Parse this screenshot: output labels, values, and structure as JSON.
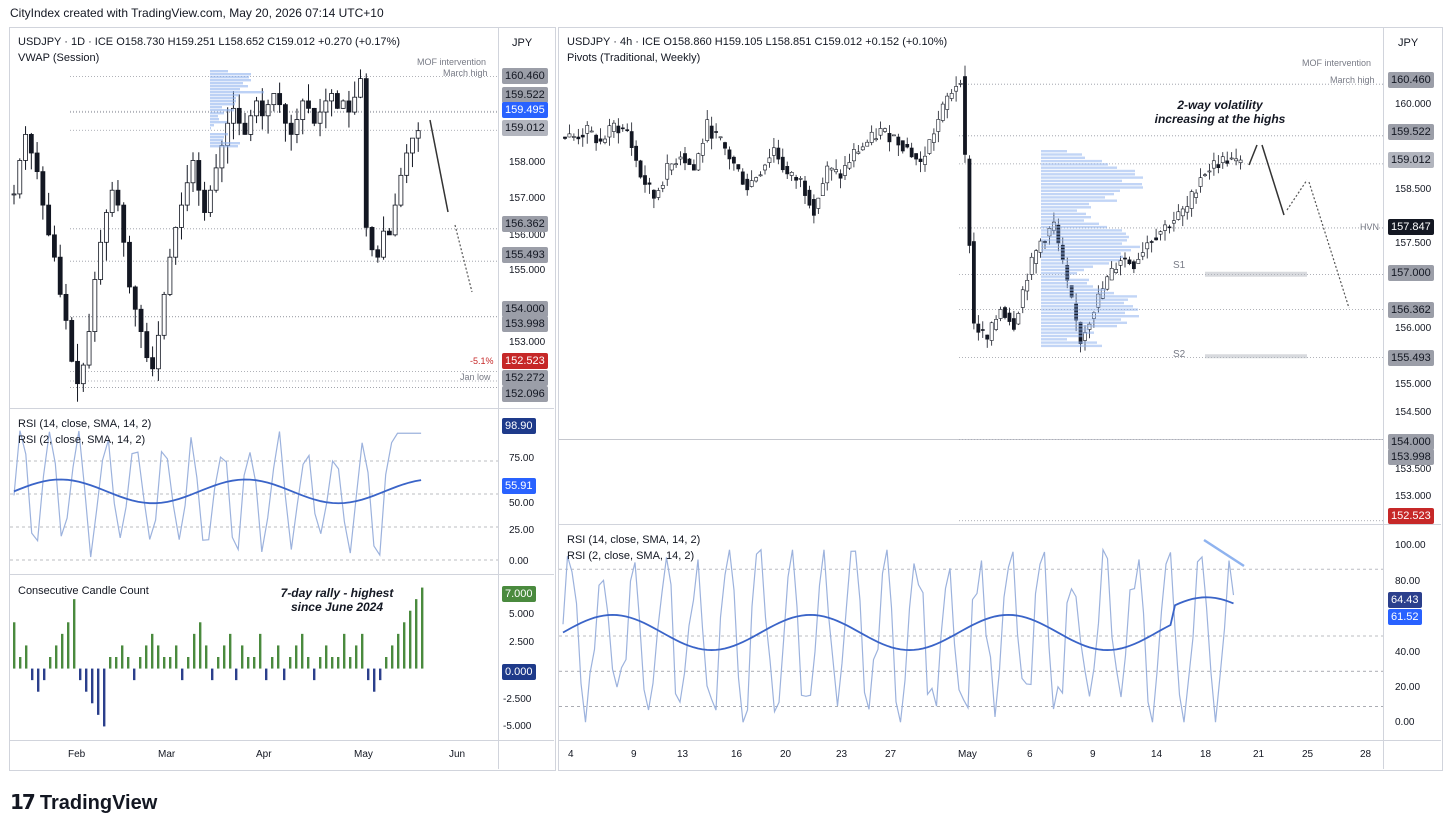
{
  "header": "CityIndex created with TradingView.com, May 20, 2026 07:14 UTC+10",
  "footer": "TradingView",
  "colors": {
    "up": "#4a8a3e",
    "down": "#2b3f8c",
    "rsi14": "#3a64c8",
    "rsi2": "#9cb2dd",
    "price_red": "#c62828",
    "price_blue": "#2962ff",
    "dark": "#131722"
  },
  "left": {
    "title": "USDJPY · 1D · ICE  O158.730  H159.251  L158.652  C159.012  +0.270 (+0.17%)",
    "indicator": "VWAP (Session)",
    "unit": "JPY",
    "price_ticks": [
      "158.000",
      "157.000",
      "156.000",
      "155.000",
      "153.000"
    ],
    "tags": [
      {
        "text": "160.460",
        "kind": "grey"
      },
      {
        "text": "159.522",
        "kind": "grey"
      },
      {
        "text": "159.495",
        "kind": "blue"
      },
      {
        "text": "159.012",
        "kind": "grey"
      },
      {
        "text": "156.362",
        "kind": "grey"
      },
      {
        "text": "155.493",
        "kind": "grey"
      },
      {
        "text": "154.000",
        "kind": "grey"
      },
      {
        "text": "153.998",
        "kind": "grey"
      },
      {
        "text": "152.523",
        "kind": "red"
      },
      {
        "text": "152.272",
        "kind": "grey"
      },
      {
        "text": "152.096",
        "kind": "grey"
      }
    ],
    "notes": {
      "mof": "MOF intervention",
      "march_high": "March high",
      "fib": "-5.1%",
      "jan_low": "Jan low"
    },
    "rsi_legend_14": "RSI (14, close, SMA, 14, 2)",
    "rsi_legend_2": "RSI (2, close, SMA, 14, 2)",
    "rsi_ticks": [
      "75.00",
      "50.00",
      "25.00",
      "0.00"
    ],
    "rsi_tags": [
      "98.90",
      "55.91"
    ],
    "ccc_legend": "Consecutive Candle Count",
    "ccc_ticks": [
      "5.000",
      "2.500",
      "-2.500",
      "-5.000"
    ],
    "ccc_tags": [
      "7.000",
      "0.000"
    ],
    "ccc_annotation_1": "7-day rally - highest",
    "ccc_annotation_2": "since June 2024",
    "x_ticks": [
      "Feb",
      "Mar",
      "Apr",
      "May",
      "Jun"
    ]
  },
  "right": {
    "title": "USDJPY · 4h · ICE  O158.860  H159.105  L158.851  C159.012  +0.152 (+0.10%)",
    "indicator": "Pivots (Traditional, Weekly)",
    "unit": "JPY",
    "price_ticks": [
      "160.000",
      "158.500",
      "157.500",
      "156.000",
      "155.000",
      "154.500",
      "153.500",
      "153.000"
    ],
    "tags": [
      {
        "text": "160.460",
        "kind": "grey"
      },
      {
        "text": "159.522",
        "kind": "grey"
      },
      {
        "text": "159.012",
        "kind": "grey"
      },
      {
        "text": "157.847",
        "kind": "dark"
      },
      {
        "text": "157.000",
        "kind": "grey"
      },
      {
        "text": "156.362",
        "kind": "grey"
      },
      {
        "text": "155.493",
        "kind": "grey"
      },
      {
        "text": "154.000",
        "kind": "grey"
      },
      {
        "text": "153.998",
        "kind": "grey"
      },
      {
        "text": "152.523",
        "kind": "red"
      }
    ],
    "notes": {
      "mof": "MOF intervention",
      "march_high": "March high",
      "hvn": "HVN",
      "s1": "S1",
      "s2": "S2"
    },
    "annotation_1": "2-way volatility",
    "annotation_2": "increasing at the highs",
    "rsi_legend_14": "RSI (14, close, SMA, 14, 2)",
    "rsi_legend_2": "RSI (2, close, SMA, 14, 2)",
    "rsi_ticks": [
      "100.00",
      "80.00",
      "40.00",
      "20.00",
      "0.00"
    ],
    "rsi_tags": [
      "64.43",
      "61.52"
    ],
    "x_ticks": [
      "4",
      "9",
      "13",
      "16",
      "20",
      "23",
      "27",
      "May",
      "6",
      "9",
      "14",
      "18",
      "21",
      "25",
      "28"
    ]
  },
  "chart_data": [
    {
      "type": "candlestick",
      "title": "USDJPY · 1D · ICE",
      "ylabel": "JPY",
      "ylim": [
        151.6,
        160.9
      ],
      "x": [
        "Feb",
        "Mar",
        "Apr",
        "May",
        "Jun"
      ],
      "levels": [
        160.46,
        159.522,
        159.495,
        159.012,
        156.362,
        155.493,
        154.0,
        153.998,
        152.523,
        152.272,
        152.096
      ],
      "last_close": 159.012,
      "close_path": [
        157.3,
        158.2,
        158.9,
        158.4,
        157.9,
        157.0,
        156.2,
        155.6,
        154.6,
        153.9,
        152.8,
        152.2,
        152.7,
        153.6,
        155.0,
        156.0,
        156.8,
        157.4,
        157.0,
        156.0,
        154.8,
        154.2,
        153.6,
        152.9,
        152.6,
        153.5,
        154.6,
        155.6,
        156.4,
        157.0,
        157.6,
        158.2,
        157.4,
        156.8,
        157.4,
        158.0,
        158.6,
        159.2,
        159.6,
        159.2,
        158.9,
        159.4,
        159.8,
        159.4,
        159.7,
        160.0,
        159.7,
        159.2,
        158.9,
        159.3,
        159.8,
        159.6,
        159.2,
        159.5,
        159.8,
        160.0,
        159.6,
        159.8,
        159.5,
        159.9,
        160.4,
        156.4,
        155.8,
        155.6,
        156.3,
        156.2,
        157.0,
        157.8,
        158.4,
        158.8,
        159.0
      ]
    },
    {
      "type": "line",
      "title": "RSI (14, close, SMA, 14, 2)",
      "ylim": [
        0,
        100
      ],
      "series": [
        {
          "name": "RSI (14, close, SMA, 14, 2)",
          "last": 55.91
        },
        {
          "name": "RSI (2, close, SMA, 14, 2)",
          "last": 98.9
        }
      ]
    },
    {
      "type": "bar",
      "title": "Consecutive Candle Count",
      "ylim": [
        -6,
        8
      ],
      "values": [
        4,
        1,
        2,
        -1,
        -2,
        -1,
        1,
        2,
        3,
        4,
        6,
        -1,
        -2,
        -3,
        -4,
        -5,
        1,
        1,
        2,
        1,
        -1,
        1,
        2,
        3,
        2,
        1,
        1,
        2,
        -1,
        1,
        3,
        4,
        2,
        -1,
        1,
        2,
        3,
        -1,
        2,
        1,
        1,
        3,
        -1,
        1,
        2,
        -1,
        1,
        2,
        3,
        1,
        -1,
        1,
        2,
        1,
        1,
        3,
        1,
        2,
        3,
        -1,
        -2,
        -1,
        1,
        2,
        3,
        4,
        5,
        6,
        7
      ],
      "last": 7.0
    },
    {
      "type": "candlestick",
      "title": "USDJPY · 4h · ICE",
      "ylabel": "JPY",
      "ylim": [
        152.5,
        160.9
      ],
      "x": [
        "4",
        "9",
        "13",
        "16",
        "20",
        "23",
        "27",
        "May",
        "6",
        "9",
        "14",
        "18",
        "21",
        "25",
        "28"
      ],
      "levels": [
        160.46,
        159.522,
        159.012,
        157.847,
        157.0,
        156.362,
        155.493,
        154.0,
        153.998,
        152.523
      ],
      "last_close": 159.012
    },
    {
      "type": "line",
      "title": "RSI (14, close, SMA, 14, 2)",
      "ylim": [
        0,
        100
      ],
      "series": [
        {
          "name": "RSI (14, close, SMA, 14, 2)",
          "last": 64.43
        },
        {
          "name": "RSI (2, close, SMA, 14, 2)",
          "last": 61.52
        }
      ]
    }
  ]
}
